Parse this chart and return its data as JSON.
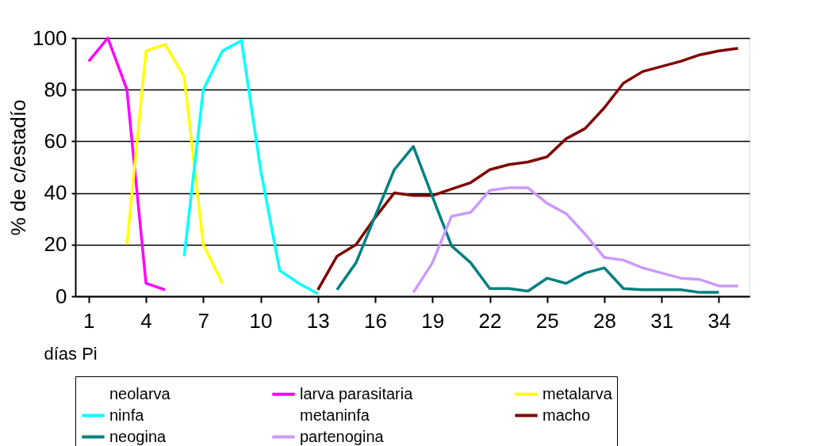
{
  "chart_data": {
    "type": "line",
    "ylabel": "% de c/estadío",
    "xlabel": "días Pi",
    "x": [
      1,
      2,
      3,
      4,
      5,
      6,
      7,
      8,
      9,
      10,
      11,
      12,
      13,
      14,
      15,
      16,
      17,
      18,
      19,
      20,
      21,
      22,
      23,
      24,
      25,
      26,
      27,
      28,
      29,
      30,
      31,
      32,
      33,
      34,
      35
    ],
    "xlim": [
      0.3,
      35.6
    ],
    "xticks": [
      1,
      4,
      7,
      10,
      13,
      16,
      19,
      22,
      25,
      28,
      31,
      34
    ],
    "ylim": [
      0,
      100
    ],
    "yticks": [
      0,
      20,
      40,
      60,
      80,
      100
    ],
    "grid": "y",
    "annotations": [
      "neolarva",
      "metaninfa"
    ],
    "legend": "bottom",
    "marker": "none",
    "line_style": "solid",
    "series": [
      {
        "name": "larva parasitaria",
        "color": "#ff00ff",
        "values": [
          91,
          100,
          80,
          5,
          2.5,
          null,
          null,
          null,
          null,
          null,
          null,
          null,
          null,
          null,
          null,
          null,
          null,
          null,
          null,
          null,
          null,
          null,
          null,
          null,
          null,
          null,
          null,
          null,
          null,
          null,
          null,
          null,
          null,
          null,
          null
        ]
      },
      {
        "name": "metalarva",
        "color": "#ffff00",
        "values": [
          null,
          null,
          20,
          95,
          97.5,
          85,
          20,
          5,
          null,
          null,
          null,
          null,
          null,
          null,
          null,
          null,
          null,
          null,
          null,
          null,
          null,
          null,
          null,
          null,
          null,
          null,
          null,
          null,
          null,
          null,
          null,
          null,
          null,
          null,
          null
        ]
      },
      {
        "name": "ninfa",
        "color": "#00ffff",
        "values": [
          null,
          null,
          null,
          null,
          null,
          15.5,
          80,
          95,
          99,
          49,
          10,
          5,
          1,
          null,
          null,
          null,
          null,
          null,
          null,
          null,
          null,
          null,
          null,
          null,
          null,
          null,
          null,
          null,
          null,
          null,
          null,
          null,
          null,
          null,
          null
        ]
      },
      {
        "name": "macho",
        "color": "#800000",
        "values": [
          null,
          null,
          null,
          null,
          null,
          null,
          null,
          null,
          null,
          null,
          null,
          null,
          2.5,
          15.5,
          20,
          30.5,
          40,
          39,
          39,
          41.5,
          44,
          49,
          51,
          52,
          54,
          61,
          65,
          73,
          82.5,
          87,
          89,
          91,
          93.5,
          95,
          96
        ]
      },
      {
        "name": "neogina",
        "color": "#008080",
        "values": [
          null,
          null,
          null,
          null,
          null,
          null,
          null,
          null,
          null,
          null,
          null,
          null,
          null,
          2.5,
          13,
          31,
          49,
          58,
          38.5,
          19.5,
          13,
          3,
          3,
          2,
          7,
          5,
          9,
          11,
          3,
          2.5,
          2.5,
          2.5,
          1.5,
          1.5,
          null
        ]
      },
      {
        "name": "partenogina",
        "color": "#cc99ff",
        "values": [
          null,
          null,
          null,
          null,
          null,
          null,
          null,
          null,
          null,
          null,
          null,
          null,
          null,
          null,
          null,
          null,
          null,
          1.5,
          13,
          31,
          32.5,
          41,
          42,
          42,
          36,
          32,
          24,
          15,
          14,
          11,
          9,
          7,
          6.5,
          4,
          4
        ]
      }
    ]
  }
}
